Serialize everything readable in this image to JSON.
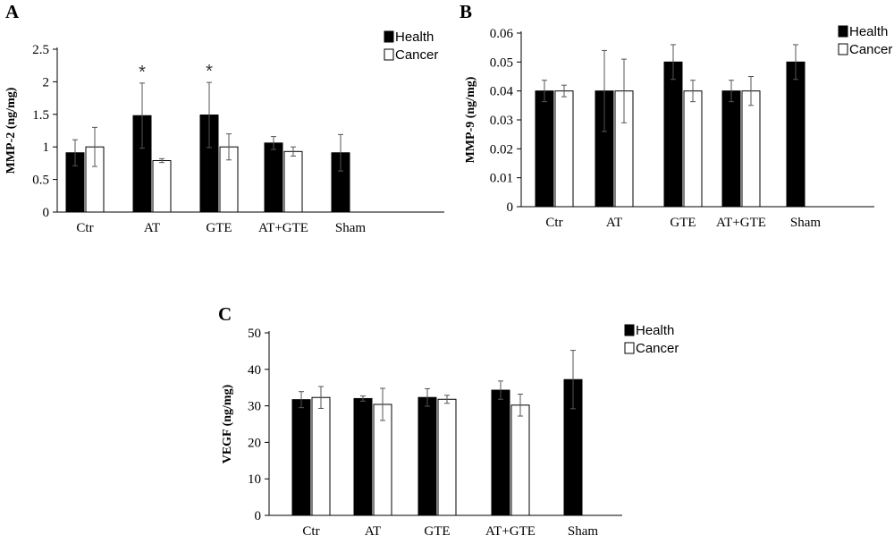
{
  "chart_data": [
    {
      "panel": "A",
      "type": "bar",
      "ylabel": "MMP-2 (ng/mg)",
      "categories": [
        "Ctr",
        "AT",
        "GTE",
        "AT+GTE",
        "Sham"
      ],
      "yticks": [
        "0",
        "0.5",
        "1",
        "1.5",
        "2",
        "2.5"
      ],
      "ylim": [
        0,
        2.5
      ],
      "series": [
        {
          "name": "Health",
          "values": [
            0.91,
            1.48,
            1.49,
            1.06,
            0.91
          ],
          "errors": [
            0.2,
            0.5,
            0.5,
            0.1,
            0.28
          ]
        },
        {
          "name": "Cancer",
          "values": [
            1.0,
            0.79,
            1.0,
            0.93,
            null
          ],
          "errors": [
            0.3,
            0.03,
            0.2,
            0.07,
            null
          ]
        }
      ],
      "annotations": [
        {
          "category": "AT",
          "text": "*"
        },
        {
          "category": "GTE",
          "text": "*"
        }
      ],
      "legend": "top-right"
    },
    {
      "panel": "B",
      "type": "bar",
      "ylabel": "MMP-9 (ng/mg)",
      "categories": [
        "Ctr",
        "AT",
        "GTE",
        "AT+GTE",
        "Sham"
      ],
      "yticks": [
        "0",
        "0.01",
        "0.02",
        "0.03",
        "0.04",
        "0.05",
        "0.06"
      ],
      "ylim": [
        0,
        0.06
      ],
      "series": [
        {
          "name": "Health",
          "values": [
            0.04,
            0.04,
            0.05,
            0.04,
            0.05
          ],
          "errors": [
            0.0037,
            0.014,
            0.006,
            0.0037,
            0.006
          ]
        },
        {
          "name": "Cancer",
          "values": [
            0.04,
            0.04,
            0.04,
            0.04,
            null
          ],
          "errors": [
            0.002,
            0.011,
            0.0037,
            0.005,
            null
          ]
        }
      ],
      "legend": "top-right"
    },
    {
      "panel": "C",
      "type": "bar",
      "ylabel": "VEGF (ng/mg)",
      "categories": [
        "Ctr",
        "AT",
        "GTE",
        "AT+GTE",
        "Sham"
      ],
      "yticks": [
        "0",
        "10",
        "20",
        "30",
        "40",
        "50"
      ],
      "ylim": [
        0,
        50
      ],
      "series": [
        {
          "name": "Health",
          "values": [
            31.7,
            32.0,
            32.3,
            34.3,
            37.2
          ],
          "errors": [
            2.2,
            0.7,
            2.4,
            2.5,
            8.0
          ]
        },
        {
          "name": "Cancer",
          "values": [
            32.3,
            30.4,
            31.8,
            30.2,
            null
          ],
          "errors": [
            3.0,
            4.4,
            1.1,
            3.0,
            null
          ]
        }
      ],
      "legend": "top-right"
    }
  ]
}
